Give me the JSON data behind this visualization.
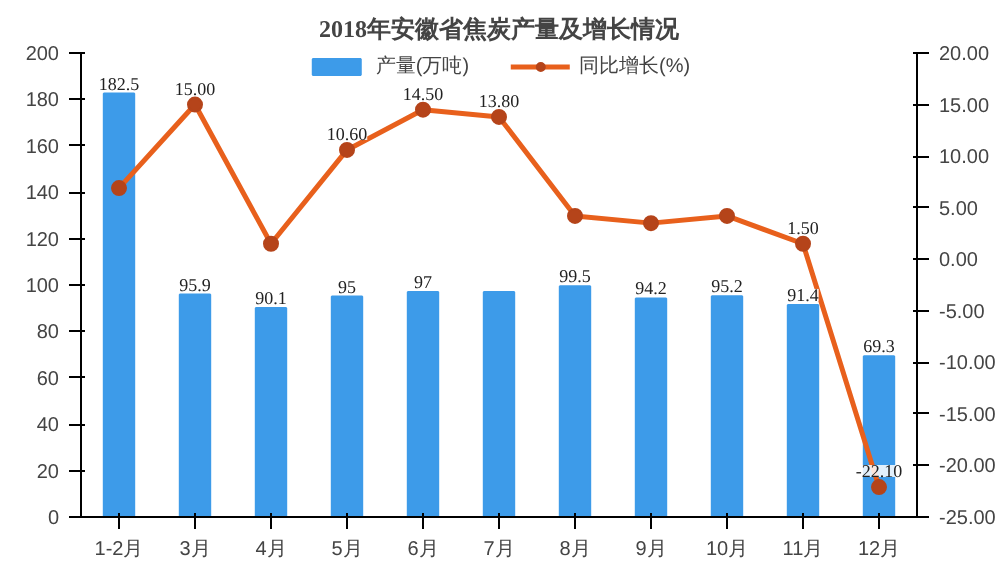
{
  "chart_data": {
    "type": "bar",
    "title": "2018年安徽省焦炭产量及增长情况",
    "categories": [
      "1-2月",
      "3月",
      "4月",
      "5月",
      "6月",
      "7月",
      "8月",
      "9月",
      "10月",
      "11月",
      "12月"
    ],
    "series": [
      {
        "name": "产量(万吨)",
        "color": "#3d9be9",
        "values": [
          182.5,
          95.9,
          90.1,
          95,
          97,
          97,
          99.5,
          94.2,
          95.2,
          91.4,
          69.3
        ],
        "value_labels": [
          "182.5",
          "95.9",
          "90.1",
          "95",
          "97",
          null,
          "99.5",
          "94.2",
          "95.2",
          "91.4",
          "69.3"
        ]
      },
      {
        "name": "同比增长(%)",
        "type": "line",
        "axis": "y2",
        "color": "#e8601c",
        "marker": "circle",
        "values": [
          6.9,
          15.0,
          1.5,
          10.6,
          14.5,
          13.8,
          4.2,
          3.5,
          4.2,
          1.5,
          -22.1
        ],
        "value_labels": [
          null,
          "15.00",
          null,
          "10.60",
          "14.50",
          "13.80",
          null,
          null,
          null,
          "1.50",
          "-22.10"
        ]
      }
    ],
    "ylim": [
      0,
      200
    ],
    "yticks": [
      0,
      20,
      40,
      60,
      80,
      100,
      120,
      140,
      160,
      180,
      200
    ],
    "y2lim": [
      -25,
      20
    ],
    "y2ticks": [
      {
        "value": -25,
        "label": "-25.00"
      },
      {
        "value": -20,
        "label": "-20.00"
      },
      {
        "value": -15,
        "label": "-15.00"
      },
      {
        "value": -10,
        "label": "-10.00"
      },
      {
        "value": -5,
        "label": "-5.00"
      },
      {
        "value": 0,
        "label": "0.00"
      },
      {
        "value": 5,
        "label": "5.00"
      },
      {
        "value": 10,
        "label": "10.00"
      },
      {
        "value": 15,
        "label": "15.00"
      },
      {
        "value": 20,
        "label": "20.00"
      }
    ],
    "legend": "top",
    "grid": false
  }
}
